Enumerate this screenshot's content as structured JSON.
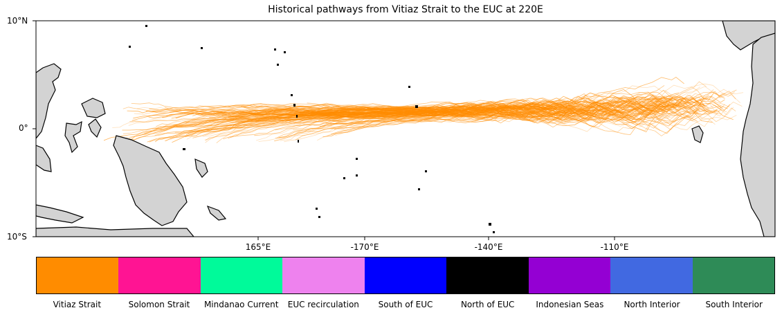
{
  "chart_data": {
    "type": "line",
    "title": "Historical pathways from Vitiaz Strait to the EUC at 220E",
    "x_tick_labels": [
      "165°E",
      "-170°E",
      "-140°E",
      "-110°E"
    ],
    "y_tick_labels": [
      "10°N",
      "0°",
      "10°S"
    ],
    "ylim": [
      -10,
      10
    ],
    "series_color": "#ff8c00",
    "series": [
      {
        "name": "Vitiaz Strait",
        "color": "#ff8c00"
      }
    ],
    "legend": {
      "placement": "bottom",
      "entries": [
        {
          "label": "Vitiaz Strait",
          "color": "#ff8c00"
        },
        {
          "label": "Solomon Strait",
          "color": "#ff1493"
        },
        {
          "label": "Mindanao Current",
          "color": "#00fa9a"
        },
        {
          "label": "EUC recirculation",
          "color": "#ee82ee"
        },
        {
          "label": "South of EUC",
          "color": "#0000ff"
        },
        {
          "label": "North of EUC",
          "color": "#000000"
        },
        {
          "label": "Indonesian Seas",
          "color": "#9400d3"
        },
        {
          "label": "North Interior",
          "color": "#4169e1"
        },
        {
          "label": "South Interior",
          "color": "#2e8b57"
        }
      ]
    },
    "land_color": "#d3d3d3"
  }
}
